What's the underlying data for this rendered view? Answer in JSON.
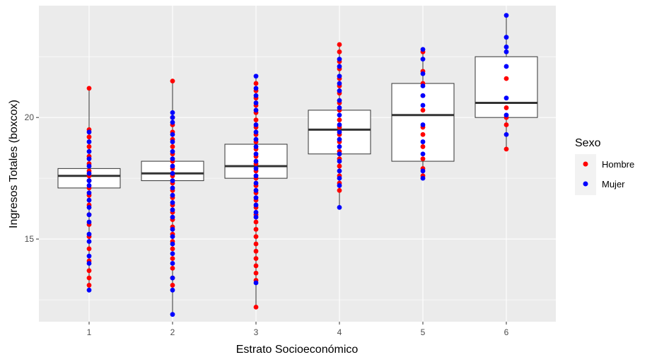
{
  "chart_data": {
    "type": "boxplot_with_points",
    "xlabel": "Estrato Socioeconómico",
    "ylabel": "Ingresos Totales (boxcox)",
    "categories": [
      "1",
      "2",
      "3",
      "4",
      "5",
      "6"
    ],
    "ylim": [
      11.6,
      24.6
    ],
    "yticks": [
      15,
      20
    ],
    "grid": true,
    "legend": {
      "title": "Sexo",
      "position": "right",
      "entries": [
        {
          "label": "Hombre",
          "color": "#ff0000"
        },
        {
          "label": "Mujer",
          "color": "#0000ff"
        }
      ]
    },
    "boxes": [
      {
        "category": "1",
        "lower_whisker": 12.9,
        "q1": 17.1,
        "median": 17.6,
        "q3": 17.9,
        "upper_whisker": 21.2
      },
      {
        "category": "2",
        "lower_whisker": 11.9,
        "q1": 17.4,
        "median": 17.7,
        "q3": 18.2,
        "upper_whisker": 21.5
      },
      {
        "category": "3",
        "lower_whisker": 12.2,
        "q1": 17.5,
        "median": 18.0,
        "q3": 18.9,
        "upper_whisker": 21.7
      },
      {
        "category": "4",
        "lower_whisker": 16.3,
        "q1": 18.5,
        "median": 19.5,
        "q3": 20.3,
        "upper_whisker": 23.0
      },
      {
        "category": "5",
        "lower_whisker": 17.5,
        "q1": 18.2,
        "median": 20.1,
        "q3": 21.4,
        "upper_whisker": 22.8
      },
      {
        "category": "6",
        "lower_whisker": 18.7,
        "q1": 20.0,
        "median": 20.6,
        "q3": 22.5,
        "upper_whisker": 24.2
      }
    ],
    "series": [
      {
        "name": "Hombre",
        "color": "#ff0000",
        "points": [
          {
            "category": "1",
            "values": [
              21.2,
              19.5,
              19.2,
              18.8,
              18.4,
              18.1,
              17.8,
              17.6,
              17.4,
              17.1,
              16.8,
              16.4,
              16.0,
              15.6,
              15.1,
              14.6,
              14.1,
              13.7,
              13.4,
              13.1
            ]
          },
          {
            "category": "2",
            "values": [
              21.5,
              20.0,
              19.7,
              19.4,
              19.1,
              18.8,
              18.5,
              18.2,
              17.9,
              17.6,
              17.3,
              17.0,
              16.7,
              16.4,
              16.1,
              15.8,
              15.5,
              15.2,
              14.9,
              14.6,
              14.2,
              13.8,
              13.4,
              13.1
            ]
          },
          {
            "category": "3",
            "values": [
              21.4,
              21.1,
              20.8,
              20.5,
              20.2,
              19.9,
              19.6,
              19.3,
              19.0,
              18.7,
              18.4,
              18.1,
              17.8,
              17.5,
              17.2,
              16.9,
              16.6,
              16.3,
              16.0,
              15.7,
              15.4,
              15.1,
              14.8,
              14.5,
              14.2,
              13.9,
              13.6,
              13.3,
              12.2
            ]
          },
          {
            "category": "4",
            "values": [
              23.0,
              22.7,
              22.3,
              22.0,
              21.6,
              21.3,
              21.0,
              20.6,
              20.3,
              19.9,
              19.6,
              19.3,
              19.0,
              18.6,
              18.3,
              18.0,
              17.6,
              17.3,
              17.0
            ]
          },
          {
            "category": "5",
            "values": [
              22.7,
              21.9,
              21.4,
              20.9,
              20.3,
              19.6,
              19.3,
              18.8,
              18.3,
              17.9,
              17.6
            ]
          },
          {
            "category": "6",
            "values": [
              21.6,
              20.4,
              20.0,
              19.7,
              18.7
            ]
          }
        ]
      },
      {
        "name": "Mujer",
        "color": "#0000ff",
        "points": [
          {
            "category": "1",
            "values": [
              19.4,
              19.0,
              18.6,
              18.3,
              18.0,
              17.7,
              17.4,
              17.2,
              16.9,
              16.6,
              16.3,
              16.0,
              15.7,
              15.2,
              14.9,
              14.3,
              14.0,
              12.9
            ]
          },
          {
            "category": "2",
            "values": [
              20.2,
              20.0,
              19.8,
              19.3,
              19.0,
              18.6,
              18.3,
              18.0,
              17.7,
              17.4,
              17.1,
              16.8,
              16.5,
              16.2,
              15.9,
              15.4,
              15.1,
              14.8,
              14.4,
              14.0,
              13.4,
              12.9,
              11.9
            ]
          },
          {
            "category": "3",
            "values": [
              21.7,
              21.2,
              20.9,
              20.6,
              20.3,
              19.7,
              19.4,
              19.1,
              18.8,
              18.5,
              18.2,
              17.9,
              17.6,
              17.3,
              17.0,
              16.7,
              16.4,
              16.1,
              15.9,
              13.2
            ]
          },
          {
            "category": "4",
            "values": [
              22.4,
              22.1,
              21.7,
              21.4,
              21.1,
              20.7,
              20.4,
              20.1,
              19.7,
              19.4,
              19.1,
              18.8,
              18.5,
              18.2,
              17.8,
              17.5,
              17.2,
              16.3
            ]
          },
          {
            "category": "5",
            "values": [
              22.8,
              22.4,
              21.8,
              21.3,
              20.9,
              20.5,
              19.7,
              19.0,
              18.5,
              17.8,
              17.5
            ]
          },
          {
            "category": "6",
            "values": [
              24.2,
              23.3,
              22.9,
              22.7,
              22.1,
              20.8,
              20.1,
              19.3
            ]
          }
        ]
      }
    ]
  }
}
